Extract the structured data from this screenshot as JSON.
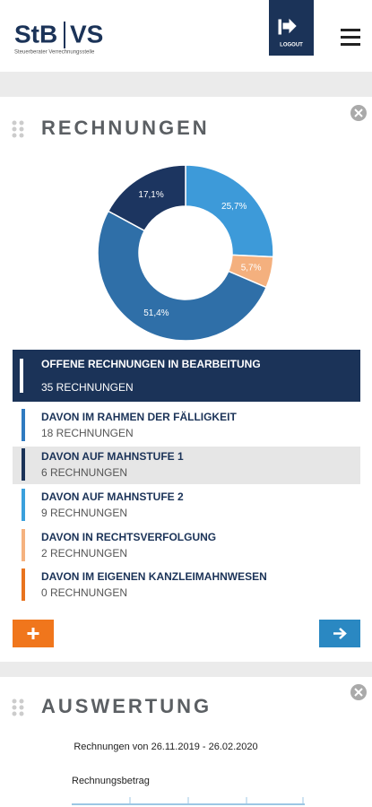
{
  "header": {
    "logo_left": "StB",
    "logo_right": "VS",
    "tagline": "Steuerberater Verrechnungsstelle",
    "logout": "LOGOUT"
  },
  "rechnungen": {
    "title": "RECHNUNGEN",
    "summary": {
      "title": "OFFENE RECHNUNGEN IN BEARBEITUNG",
      "count": "35 RECHNUNGEN"
    },
    "items": [
      {
        "title": "DAVON IM RAHMEN DER FÄLLIGKEIT",
        "count": "18 RECHNUNGEN",
        "color": "#2f7ac0"
      },
      {
        "title": "DAVON AUF MAHNSTUFE 1",
        "count": "6 RECHNUNGEN",
        "color": "#1b3358"
      },
      {
        "title": "DAVON AUF MAHNSTUFE 2",
        "count": "9 RECHNUNGEN",
        "color": "#3aa0dc"
      },
      {
        "title": "DAVON IN RECHTSVERFOLGUNG",
        "count": "2 RECHNUNGEN",
        "color": "#f5b27f"
      },
      {
        "title": "DAVON IM EIGENEN KANZLEIMAHNWESEN",
        "count": "0 RECHNUNGEN",
        "color": "#e8731e"
      }
    ]
  },
  "chart_data": {
    "type": "pie",
    "donut": true,
    "values": [
      25.7,
      5.7,
      51.4,
      17.1
    ],
    "value_labels": [
      "25,7%",
      "5,7%",
      "51,4%",
      "17,1%"
    ],
    "colors": [
      "#3d9ad9",
      "#f4b07e",
      "#2f6fa8",
      "#1c3560"
    ]
  },
  "auswertung": {
    "title": "AUSWERTUNG",
    "range": "Rechnungen von 26.11.2019 - 26.02.2020",
    "axis_label": "Rechnungsbetrag"
  }
}
